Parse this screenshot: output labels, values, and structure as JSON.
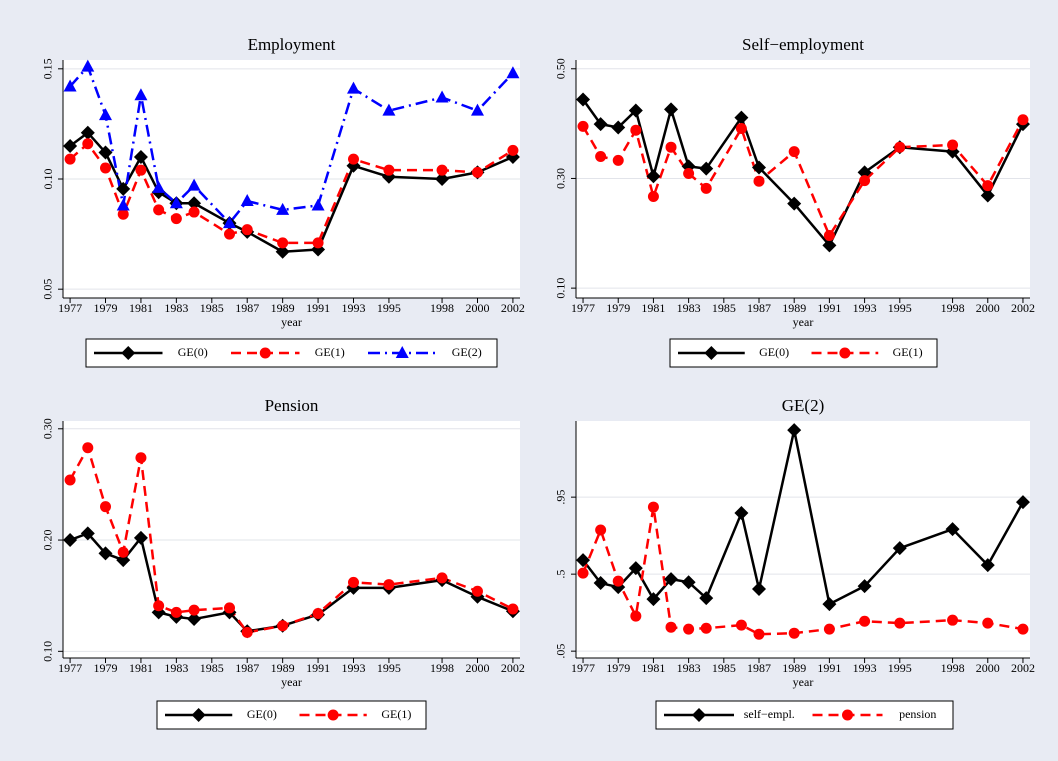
{
  "chart_data": [
    {
      "type": "line",
      "title": "Employment",
      "xlabel": "year",
      "x": [
        1977,
        1978,
        1979,
        1980,
        1981,
        1982,
        1983,
        1984,
        1986,
        1987,
        1989,
        1991,
        1993,
        1995,
        1998,
        2000,
        2002
      ],
      "xlim": [
        1976.6,
        2002.4
      ],
      "xticks": [
        1977,
        1979,
        1981,
        1983,
        1985,
        1987,
        1989,
        1991,
        1993,
        1995,
        1998,
        2000,
        2002
      ],
      "ylim": [
        0.046,
        0.154
      ],
      "yticks": [
        {
          "value": 0.05,
          "label": "0.05"
        },
        {
          "value": 0.1,
          "label": "0.10"
        },
        {
          "value": 0.15,
          "label": "0.15"
        }
      ],
      "grid": true,
      "series": [
        {
          "name": "GE(0)",
          "color": "#000000",
          "marker": "diamond",
          "linestyle": "solid",
          "values": [
            0.115,
            0.121,
            0.112,
            0.0955,
            0.11,
            0.094,
            0.089,
            0.089,
            0.08,
            0.076,
            0.067,
            0.068,
            0.106,
            0.101,
            0.1,
            0.103,
            0.11
          ]
        },
        {
          "name": "GE(1)",
          "color": "#ff0000",
          "marker": "circle",
          "linestyle": "dash",
          "values": [
            0.109,
            0.116,
            0.105,
            0.084,
            0.104,
            0.086,
            0.082,
            0.085,
            0.075,
            0.077,
            0.071,
            0.071,
            0.109,
            0.104,
            0.104,
            0.103,
            0.113
          ]
        },
        {
          "name": "GE(2)",
          "color": "#0000ff",
          "marker": "triangle",
          "linestyle": "dashdot",
          "values": [
            0.142,
            0.151,
            0.129,
            0.088,
            0.138,
            0.096,
            0.089,
            0.097,
            0.08,
            0.09,
            0.086,
            0.088,
            0.141,
            0.131,
            0.137,
            0.131,
            0.148
          ]
        }
      ]
    },
    {
      "type": "line",
      "title": "Self−employment",
      "xlabel": "year",
      "x": [
        1977,
        1978,
        1979,
        1980,
        1981,
        1982,
        1983,
        1984,
        1986,
        1987,
        1989,
        1991,
        1993,
        1995,
        1998,
        2000,
        2002
      ],
      "xlim": [
        1976.6,
        2002.4
      ],
      "xticks": [
        1977,
        1979,
        1981,
        1983,
        1985,
        1987,
        1989,
        1991,
        1993,
        1995,
        1998,
        2000,
        2002
      ],
      "ylim": [
        0.082,
        0.516
      ],
      "yticks": [
        {
          "value": 0.1,
          "label": "0.10"
        },
        {
          "value": 0.3,
          "label": "0.30"
        },
        {
          "value": 0.5,
          "label": "0.50"
        }
      ],
      "grid": true,
      "series": [
        {
          "name": "GE(0)",
          "color": "#000000",
          "marker": "diamond",
          "linestyle": "solid",
          "values": [
            0.444,
            0.399,
            0.393,
            0.424,
            0.304,
            0.426,
            0.322,
            0.318,
            0.411,
            0.32,
            0.254,
            0.178,
            0.311,
            0.357,
            0.349,
            0.269,
            0.399
          ]
        },
        {
          "name": "GE(1)",
          "color": "#ff0000",
          "marker": "circle",
          "linestyle": "dash",
          "values": [
            0.395,
            0.34,
            0.333,
            0.388,
            0.267,
            0.357,
            0.309,
            0.282,
            0.391,
            0.295,
            0.349,
            0.196,
            0.296,
            0.357,
            0.361,
            0.287,
            0.407
          ]
        }
      ]
    },
    {
      "type": "line",
      "title": "Pension",
      "xlabel": "year",
      "x": [
        1977,
        1978,
        1979,
        1980,
        1981,
        1982,
        1983,
        1984,
        1986,
        1987,
        1989,
        1991,
        1993,
        1995,
        1998,
        2000,
        2002
      ],
      "xlim": [
        1976.6,
        2002.4
      ],
      "xticks": [
        1977,
        1979,
        1981,
        1983,
        1985,
        1987,
        1989,
        1991,
        1993,
        1995,
        1998,
        2000,
        2002
      ],
      "ylim": [
        0.094,
        0.307
      ],
      "yticks": [
        {
          "value": 0.1,
          "label": "0.10"
        },
        {
          "value": 0.2,
          "label": "0.20"
        },
        {
          "value": 0.3,
          "label": "0.30"
        }
      ],
      "grid": true,
      "series": [
        {
          "name": "GE(0)",
          "color": "#000000",
          "marker": "diamond",
          "linestyle": "solid",
          "values": [
            0.2,
            0.206,
            0.188,
            0.182,
            0.202,
            0.135,
            0.131,
            0.129,
            0.135,
            0.118,
            0.123,
            0.133,
            0.157,
            0.157,
            0.164,
            0.149,
            0.136
          ]
        },
        {
          "name": "GE(1)",
          "color": "#ff0000",
          "marker": "circle",
          "linestyle": "dash",
          "values": [
            0.254,
            0.283,
            0.23,
            0.189,
            0.274,
            0.141,
            0.135,
            0.137,
            0.139,
            0.117,
            0.123,
            0.134,
            0.162,
            0.16,
            0.166,
            0.154,
            0.138
          ]
        }
      ]
    },
    {
      "type": "line",
      "title": "GE(2)",
      "xlabel": "year",
      "x": [
        1977,
        1978,
        1979,
        1980,
        1981,
        1982,
        1983,
        1984,
        1986,
        1987,
        1989,
        1991,
        1993,
        1995,
        1998,
        2000,
        2002
      ],
      "xlim": [
        1976.6,
        2002.4
      ],
      "xticks": [
        1977,
        1979,
        1981,
        1983,
        1985,
        1987,
        1989,
        1991,
        1993,
        1995,
        1998,
        2000,
        2002
      ],
      "ylim": [
        0.01,
        1.395
      ],
      "yticks": [
        {
          "value": 0.05,
          "label": ".05"
        },
        {
          "value": 0.5,
          "label": ".5"
        },
        {
          "value": 0.95,
          "label": ".95"
        }
      ],
      "grid": true,
      "series": [
        {
          "name": "self−empl.",
          "color": "#000000",
          "marker": "diamond",
          "linestyle": "solid",
          "values": [
            0.582,
            0.448,
            0.424,
            0.535,
            0.354,
            0.471,
            0.453,
            0.36,
            0.857,
            0.413,
            1.342,
            0.325,
            0.43,
            0.652,
            0.763,
            0.553,
            0.921
          ]
        },
        {
          "name": "pension",
          "color": "#ff0000",
          "marker": "circle",
          "linestyle": "dash",
          "values": [
            0.506,
            0.758,
            0.459,
            0.255,
            0.892,
            0.19,
            0.179,
            0.184,
            0.202,
            0.149,
            0.155,
            0.179,
            0.225,
            0.214,
            0.231,
            0.214,
            0.179
          ]
        }
      ]
    }
  ]
}
